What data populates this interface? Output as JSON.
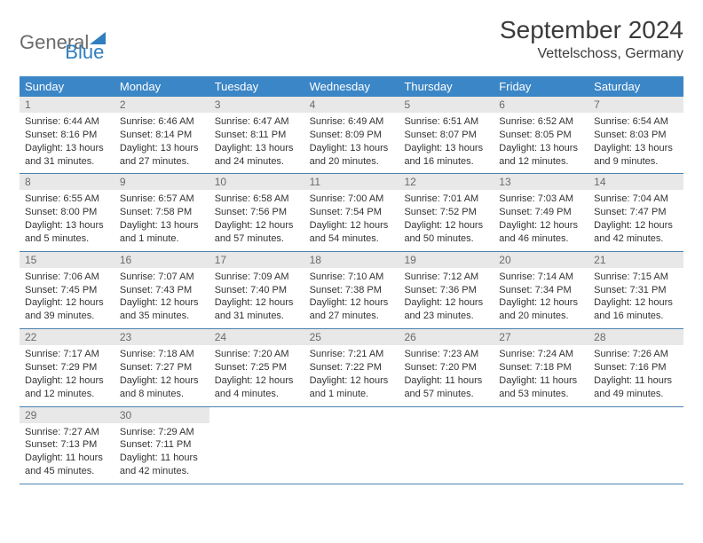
{
  "logo": {
    "general": "General",
    "blue": "Blue"
  },
  "title": "September 2024",
  "location": "Vettelschoss, Germany",
  "colors": {
    "header_bg": "#3b86c6",
    "header_text": "#ffffff",
    "daynum_bg": "#e8e8e8",
    "daynum_text": "#6a6a6a",
    "body_text": "#333333",
    "row_border": "#4a82b0",
    "logo_gray": "#6b6b6b",
    "logo_blue": "#2f7ebf",
    "page_bg": "#ffffff"
  },
  "fonts": {
    "title_size_pt": 21,
    "location_size_pt": 12,
    "dayheader_size_pt": 10,
    "daynum_size_pt": 9,
    "body_size_pt": 8,
    "family": "Arial"
  },
  "day_headers": [
    "Sunday",
    "Monday",
    "Tuesday",
    "Wednesday",
    "Thursday",
    "Friday",
    "Saturday"
  ],
  "weeks": [
    [
      {
        "n": "1",
        "sunrise": "Sunrise: 6:44 AM",
        "sunset": "Sunset: 8:16 PM",
        "daylight": "Daylight: 13 hours and 31 minutes."
      },
      {
        "n": "2",
        "sunrise": "Sunrise: 6:46 AM",
        "sunset": "Sunset: 8:14 PM",
        "daylight": "Daylight: 13 hours and 27 minutes."
      },
      {
        "n": "3",
        "sunrise": "Sunrise: 6:47 AM",
        "sunset": "Sunset: 8:11 PM",
        "daylight": "Daylight: 13 hours and 24 minutes."
      },
      {
        "n": "4",
        "sunrise": "Sunrise: 6:49 AM",
        "sunset": "Sunset: 8:09 PM",
        "daylight": "Daylight: 13 hours and 20 minutes."
      },
      {
        "n": "5",
        "sunrise": "Sunrise: 6:51 AM",
        "sunset": "Sunset: 8:07 PM",
        "daylight": "Daylight: 13 hours and 16 minutes."
      },
      {
        "n": "6",
        "sunrise": "Sunrise: 6:52 AM",
        "sunset": "Sunset: 8:05 PM",
        "daylight": "Daylight: 13 hours and 12 minutes."
      },
      {
        "n": "7",
        "sunrise": "Sunrise: 6:54 AM",
        "sunset": "Sunset: 8:03 PM",
        "daylight": "Daylight: 13 hours and 9 minutes."
      }
    ],
    [
      {
        "n": "8",
        "sunrise": "Sunrise: 6:55 AM",
        "sunset": "Sunset: 8:00 PM",
        "daylight": "Daylight: 13 hours and 5 minutes."
      },
      {
        "n": "9",
        "sunrise": "Sunrise: 6:57 AM",
        "sunset": "Sunset: 7:58 PM",
        "daylight": "Daylight: 13 hours and 1 minute."
      },
      {
        "n": "10",
        "sunrise": "Sunrise: 6:58 AM",
        "sunset": "Sunset: 7:56 PM",
        "daylight": "Daylight: 12 hours and 57 minutes."
      },
      {
        "n": "11",
        "sunrise": "Sunrise: 7:00 AM",
        "sunset": "Sunset: 7:54 PM",
        "daylight": "Daylight: 12 hours and 54 minutes."
      },
      {
        "n": "12",
        "sunrise": "Sunrise: 7:01 AM",
        "sunset": "Sunset: 7:52 PM",
        "daylight": "Daylight: 12 hours and 50 minutes."
      },
      {
        "n": "13",
        "sunrise": "Sunrise: 7:03 AM",
        "sunset": "Sunset: 7:49 PM",
        "daylight": "Daylight: 12 hours and 46 minutes."
      },
      {
        "n": "14",
        "sunrise": "Sunrise: 7:04 AM",
        "sunset": "Sunset: 7:47 PM",
        "daylight": "Daylight: 12 hours and 42 minutes."
      }
    ],
    [
      {
        "n": "15",
        "sunrise": "Sunrise: 7:06 AM",
        "sunset": "Sunset: 7:45 PM",
        "daylight": "Daylight: 12 hours and 39 minutes."
      },
      {
        "n": "16",
        "sunrise": "Sunrise: 7:07 AM",
        "sunset": "Sunset: 7:43 PM",
        "daylight": "Daylight: 12 hours and 35 minutes."
      },
      {
        "n": "17",
        "sunrise": "Sunrise: 7:09 AM",
        "sunset": "Sunset: 7:40 PM",
        "daylight": "Daylight: 12 hours and 31 minutes."
      },
      {
        "n": "18",
        "sunrise": "Sunrise: 7:10 AM",
        "sunset": "Sunset: 7:38 PM",
        "daylight": "Daylight: 12 hours and 27 minutes."
      },
      {
        "n": "19",
        "sunrise": "Sunrise: 7:12 AM",
        "sunset": "Sunset: 7:36 PM",
        "daylight": "Daylight: 12 hours and 23 minutes."
      },
      {
        "n": "20",
        "sunrise": "Sunrise: 7:14 AM",
        "sunset": "Sunset: 7:34 PM",
        "daylight": "Daylight: 12 hours and 20 minutes."
      },
      {
        "n": "21",
        "sunrise": "Sunrise: 7:15 AM",
        "sunset": "Sunset: 7:31 PM",
        "daylight": "Daylight: 12 hours and 16 minutes."
      }
    ],
    [
      {
        "n": "22",
        "sunrise": "Sunrise: 7:17 AM",
        "sunset": "Sunset: 7:29 PM",
        "daylight": "Daylight: 12 hours and 12 minutes."
      },
      {
        "n": "23",
        "sunrise": "Sunrise: 7:18 AM",
        "sunset": "Sunset: 7:27 PM",
        "daylight": "Daylight: 12 hours and 8 minutes."
      },
      {
        "n": "24",
        "sunrise": "Sunrise: 7:20 AM",
        "sunset": "Sunset: 7:25 PM",
        "daylight": "Daylight: 12 hours and 4 minutes."
      },
      {
        "n": "25",
        "sunrise": "Sunrise: 7:21 AM",
        "sunset": "Sunset: 7:22 PM",
        "daylight": "Daylight: 12 hours and 1 minute."
      },
      {
        "n": "26",
        "sunrise": "Sunrise: 7:23 AM",
        "sunset": "Sunset: 7:20 PM",
        "daylight": "Daylight: 11 hours and 57 minutes."
      },
      {
        "n": "27",
        "sunrise": "Sunrise: 7:24 AM",
        "sunset": "Sunset: 7:18 PM",
        "daylight": "Daylight: 11 hours and 53 minutes."
      },
      {
        "n": "28",
        "sunrise": "Sunrise: 7:26 AM",
        "sunset": "Sunset: 7:16 PM",
        "daylight": "Daylight: 11 hours and 49 minutes."
      }
    ],
    [
      {
        "n": "29",
        "sunrise": "Sunrise: 7:27 AM",
        "sunset": "Sunset: 7:13 PM",
        "daylight": "Daylight: 11 hours and 45 minutes."
      },
      {
        "n": "30",
        "sunrise": "Sunrise: 7:29 AM",
        "sunset": "Sunset: 7:11 PM",
        "daylight": "Daylight: 11 hours and 42 minutes."
      },
      {
        "empty": true
      },
      {
        "empty": true
      },
      {
        "empty": true
      },
      {
        "empty": true
      },
      {
        "empty": true
      }
    ]
  ]
}
